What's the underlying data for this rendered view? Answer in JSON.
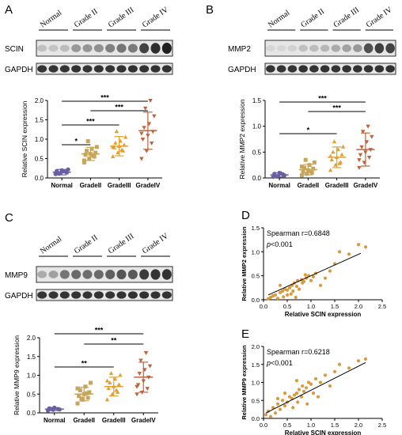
{
  "panels": [
    {
      "letter": "A",
      "blot": {
        "lanes": [
          "Normal",
          "Grade II",
          "Grade III",
          "Grade IV"
        ],
        "bands": [
          {
            "label": "SCIN",
            "intensity": [
              0.2,
              0.18,
              0.22,
              0.38,
              0.4,
              0.42,
              0.5,
              0.55,
              0.52,
              0.78,
              0.88,
              0.95
            ]
          },
          {
            "label": "GAPDH",
            "intensity": [
              0.85,
              0.85,
              0.85,
              0.86,
              0.85,
              0.86,
              0.85,
              0.86,
              0.86,
              0.86,
              0.86,
              0.86
            ]
          }
        ]
      }
    },
    {
      "letter": "B",
      "blot": {
        "lanes": [
          "Normal",
          "Grade II",
          "Grade III",
          "Grade IV"
        ],
        "bands": [
          {
            "label": "MMP2",
            "intensity": [
              0.1,
              0.1,
              0.12,
              0.2,
              0.22,
              0.24,
              0.3,
              0.34,
              0.38,
              0.72,
              0.8,
              0.78
            ]
          },
          {
            "label": "GAPDH",
            "intensity": [
              0.85,
              0.85,
              0.85,
              0.86,
              0.85,
              0.86,
              0.85,
              0.86,
              0.86,
              0.86,
              0.86,
              0.86
            ]
          }
        ]
      }
    },
    {
      "letter": "C",
      "blot": {
        "lanes": [
          "Normal",
          "Grade II",
          "Grade III",
          "Grade IV"
        ],
        "bands": [
          {
            "label": "MMP9",
            "intensity": [
              0.3,
              0.35,
              0.55,
              0.6,
              0.58,
              0.6,
              0.65,
              0.7,
              0.68,
              0.82,
              0.85,
              0.86
            ]
          },
          {
            "label": "GAPDH",
            "intensity": [
              0.85,
              0.85,
              0.85,
              0.86,
              0.85,
              0.86,
              0.85,
              0.86,
              0.86,
              0.86,
              0.86,
              0.86
            ]
          }
        ]
      }
    },
    {
      "letter": "D"
    },
    {
      "letter": "E"
    }
  ],
  "chart_data": [
    {
      "panel": "A",
      "type": "scatter",
      "ylabel": "Relative SCIN expression",
      "ylim": [
        0,
        2.0
      ],
      "yticks": [
        "0.0",
        "0.5",
        "1.0",
        "1.5",
        "2.0"
      ],
      "categories": [
        "Normal",
        "GradeII",
        "GradeIII",
        "GradeIV"
      ],
      "colors": [
        "#6b5fa3",
        "#c7a55b",
        "#e0a233",
        "#c0623b"
      ],
      "marker_shapes": [
        "circle",
        "square",
        "triangle",
        "triangle-down"
      ],
      "mean": [
        0.15,
        0.62,
        0.82,
        1.22
      ],
      "sd": [
        0.07,
        0.17,
        0.25,
        0.48
      ],
      "points": [
        [
          0.1,
          0.13,
          0.16,
          0.18,
          0.2,
          0.14,
          0.12,
          0.17,
          0.22,
          0.11
        ],
        [
          0.4,
          0.5,
          0.55,
          0.6,
          0.62,
          0.65,
          0.7,
          0.75,
          0.8,
          0.95,
          0.58,
          0.45
        ],
        [
          0.55,
          0.65,
          0.7,
          0.78,
          0.82,
          0.85,
          0.9,
          0.95,
          1.05,
          1.2,
          0.72,
          0.8
        ],
        [
          0.5,
          0.7,
          0.9,
          1.0,
          1.1,
          1.2,
          1.3,
          1.4,
          1.6,
          1.8,
          2.0,
          1.15
        ]
      ],
      "significance": [
        {
          "from": 0,
          "to": 3,
          "label": "***"
        },
        {
          "from": 1,
          "to": 3,
          "label": "***"
        },
        {
          "from": 0,
          "to": 2,
          "label": "***"
        },
        {
          "from": 0,
          "to": 1,
          "label": "*"
        }
      ]
    },
    {
      "panel": "B",
      "type": "scatter",
      "ylabel": "Relative MMP2 expression",
      "ylim": [
        0,
        1.5
      ],
      "yticks": [
        "0.0",
        "0.5",
        "1.0",
        "1.5"
      ],
      "categories": [
        "Normal",
        "GradeII",
        "GradeIII",
        "GradeIV"
      ],
      "colors": [
        "#6b5fa3",
        "#c7a55b",
        "#e0a233",
        "#c0623b"
      ],
      "marker_shapes": [
        "circle",
        "square",
        "triangle",
        "triangle-down"
      ],
      "mean": [
        0.06,
        0.16,
        0.4,
        0.55
      ],
      "sd": [
        0.04,
        0.1,
        0.2,
        0.32
      ],
      "points": [
        [
          0.02,
          0.04,
          0.06,
          0.08,
          0.1,
          0.05,
          0.03,
          0.09
        ],
        [
          0.05,
          0.08,
          0.1,
          0.12,
          0.15,
          0.18,
          0.2,
          0.25,
          0.3,
          0.35,
          0.13,
          0.22
        ],
        [
          0.15,
          0.25,
          0.3,
          0.35,
          0.4,
          0.45,
          0.5,
          0.55,
          0.6,
          0.7,
          0.28,
          0.42
        ],
        [
          0.2,
          0.3,
          0.4,
          0.45,
          0.5,
          0.55,
          0.6,
          0.7,
          0.8,
          0.9,
          1.0,
          0.35
        ]
      ],
      "significance": [
        {
          "from": 0,
          "to": 3,
          "label": "***"
        },
        {
          "from": 1,
          "to": 3,
          "label": "***"
        },
        {
          "from": 0,
          "to": 2,
          "label": "*"
        }
      ]
    },
    {
      "panel": "C",
      "type": "scatter",
      "ylabel": "Relative MMP9 expression",
      "ylim": [
        0,
        2.0
      ],
      "yticks": [
        "0.0",
        "0.5",
        "1.0",
        "1.5",
        "2.0"
      ],
      "categories": [
        "Normal",
        "GradeII",
        "GradeIII",
        "GradeIV"
      ],
      "colors": [
        "#6b5fa3",
        "#c7a55b",
        "#e0a233",
        "#c0623b"
      ],
      "marker_shapes": [
        "circle",
        "square",
        "triangle",
        "triangle-down"
      ],
      "mean": [
        0.1,
        0.5,
        0.7,
        0.95
      ],
      "sd": [
        0.04,
        0.18,
        0.25,
        0.4
      ],
      "points": [
        [
          0.06,
          0.08,
          0.1,
          0.12,
          0.14,
          0.09,
          0.11
        ],
        [
          0.25,
          0.35,
          0.4,
          0.45,
          0.5,
          0.55,
          0.6,
          0.7,
          0.8,
          0.38,
          0.52,
          0.65
        ],
        [
          0.35,
          0.5,
          0.55,
          0.65,
          0.7,
          0.75,
          0.8,
          0.9,
          1.0,
          1.05,
          0.6,
          0.85
        ],
        [
          0.5,
          0.55,
          0.65,
          0.75,
          0.85,
          0.95,
          1.05,
          1.15,
          1.25,
          1.4,
          1.6,
          0.7
        ]
      ],
      "significance": [
        {
          "from": 0,
          "to": 3,
          "label": "***"
        },
        {
          "from": 1,
          "to": 3,
          "label": "**"
        },
        {
          "from": 0,
          "to": 2,
          "label": "**"
        }
      ]
    },
    {
      "panel": "D",
      "type": "scatter",
      "xlabel": "Relative SCIN expression",
      "ylabel": "Relative MMP2 expression",
      "xlim": [
        0,
        2.5
      ],
      "ylim": [
        0,
        1.5
      ],
      "xticks": [
        "0.0",
        "0.5",
        "1.0",
        "1.5",
        "2.0",
        "2.5"
      ],
      "yticks": [
        "0.0",
        "0.5",
        "1.0",
        "1.5"
      ],
      "stat": "Spearman r=0.6848",
      "pvalue_italic": "p",
      "pvalue_rest": "<0.001",
      "point_color": "#d99a3c",
      "fit": {
        "x": [
          0.1,
          2.05
        ],
        "y": [
          0.1,
          0.97
        ]
      },
      "x": [
        0.1,
        0.15,
        0.2,
        0.25,
        0.3,
        0.35,
        0.4,
        0.42,
        0.45,
        0.5,
        0.55,
        0.58,
        0.6,
        0.62,
        0.65,
        0.7,
        0.72,
        0.75,
        0.8,
        0.82,
        0.85,
        0.9,
        0.95,
        1.0,
        1.05,
        1.1,
        1.2,
        1.3,
        1.4,
        1.5,
        1.6,
        1.8,
        2.0,
        2.15,
        0.35,
        0.5,
        0.68,
        0.88
      ],
      "y": [
        0.02,
        0.05,
        0.08,
        0.1,
        0.03,
        0.15,
        0.18,
        0.06,
        0.22,
        0.2,
        0.25,
        0.12,
        0.3,
        0.18,
        0.35,
        0.28,
        0.4,
        0.22,
        0.42,
        0.35,
        0.38,
        0.45,
        0.5,
        0.4,
        0.48,
        0.55,
        0.3,
        0.45,
        0.6,
        0.75,
        1.0,
        0.95,
        1.15,
        1.1,
        0.3,
        0.1,
        0.05,
        0.52
      ]
    },
    {
      "panel": "E",
      "type": "scatter",
      "xlabel": "Relative SCIN expression",
      "ylabel": "Relative MMP9 expression",
      "xlim": [
        0,
        2.5
      ],
      "ylim": [
        0,
        2.0
      ],
      "xticks": [
        "0.0",
        "0.5",
        "1.0",
        "1.5",
        "2.0",
        "2.5"
      ],
      "yticks": [
        "0.0",
        "0.5",
        "1.0",
        "1.5",
        "2.0"
      ],
      "stat": "Spearman r=0.6218",
      "pvalue_italic": "p",
      "pvalue_rest": "<0.001",
      "point_color": "#d99a3c",
      "fit": {
        "x": [
          0.05,
          2.15
        ],
        "y": [
          0.15,
          1.55
        ]
      },
      "x": [
        0.05,
        0.1,
        0.15,
        0.2,
        0.25,
        0.3,
        0.35,
        0.4,
        0.45,
        0.5,
        0.55,
        0.6,
        0.62,
        0.65,
        0.7,
        0.72,
        0.75,
        0.8,
        0.82,
        0.85,
        0.9,
        0.95,
        1.0,
        1.05,
        1.1,
        1.2,
        1.3,
        1.4,
        1.5,
        1.6,
        1.8,
        2.0,
        2.15,
        0.3,
        0.45,
        0.7,
        0.92,
        1.15
      ],
      "y": [
        0.1,
        0.2,
        0.05,
        0.3,
        0.15,
        0.4,
        0.25,
        0.5,
        0.35,
        0.45,
        0.6,
        0.55,
        0.3,
        0.65,
        0.7,
        0.45,
        0.8,
        0.6,
        0.9,
        0.75,
        0.85,
        1.0,
        0.95,
        0.7,
        1.1,
        1.0,
        1.2,
        0.9,
        1.3,
        1.5,
        1.4,
        1.6,
        1.65,
        0.55,
        0.7,
        1.05,
        0.4,
        0.6
      ]
    }
  ]
}
